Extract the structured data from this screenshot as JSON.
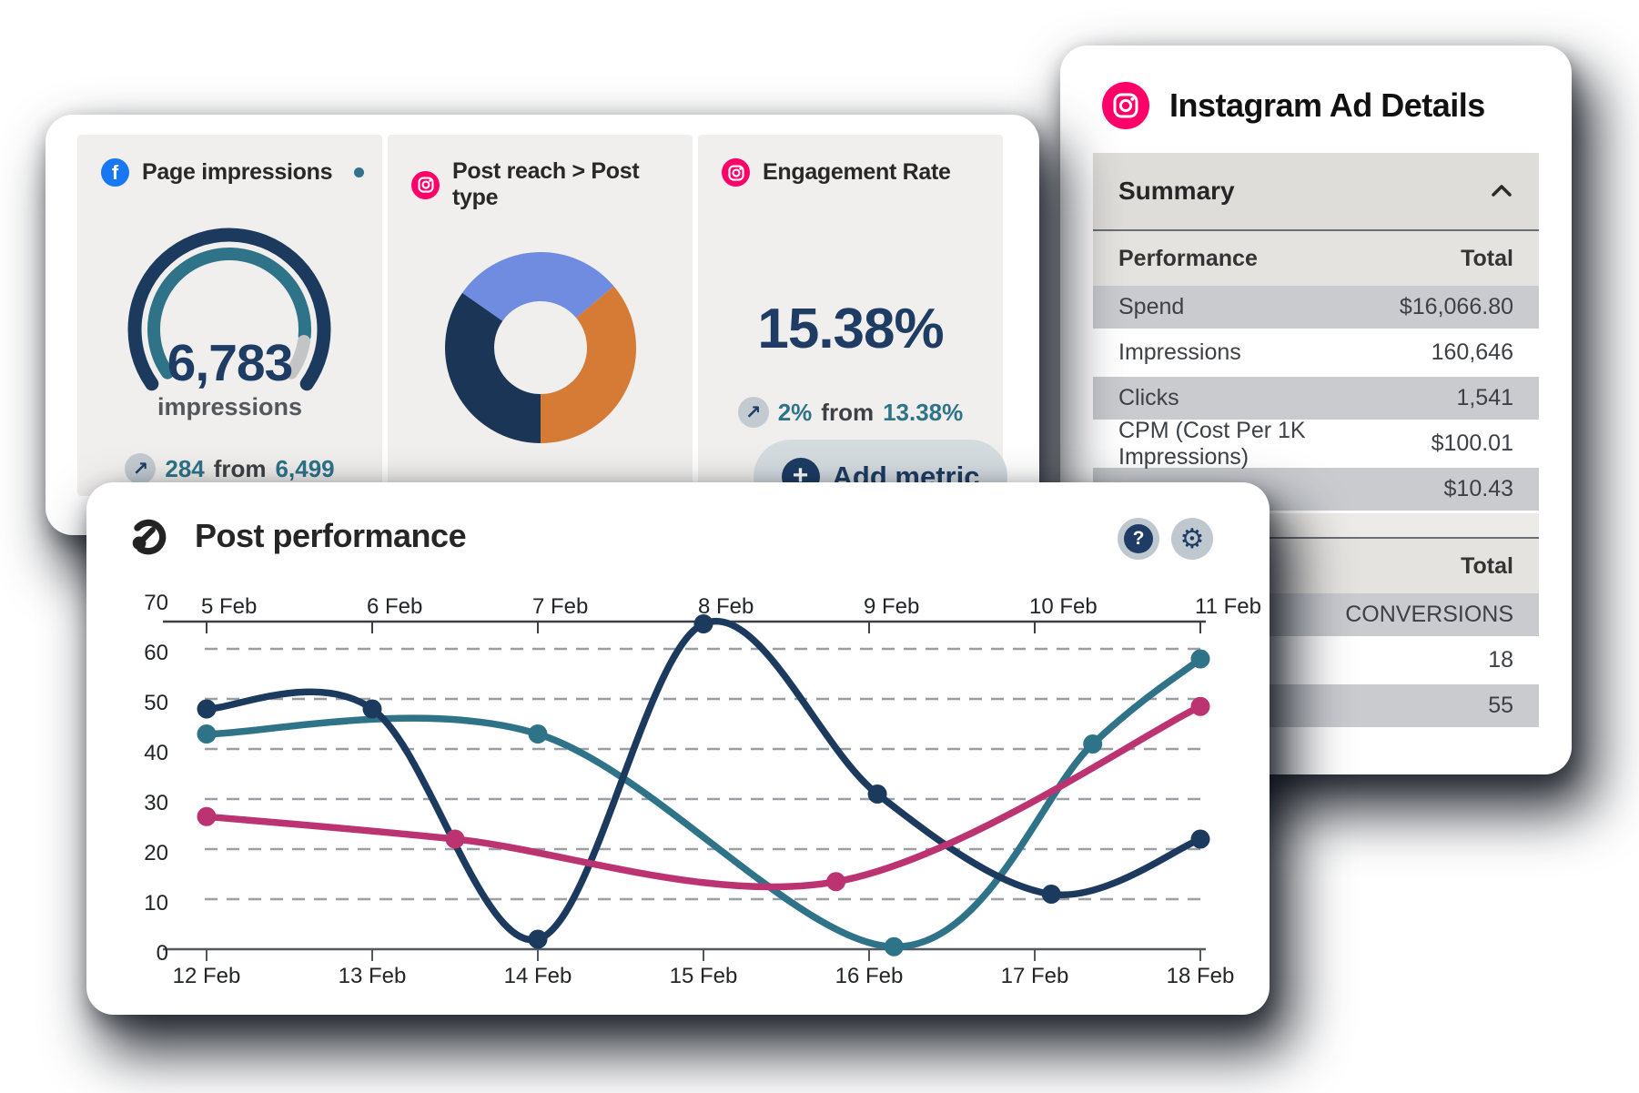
{
  "icons": {
    "facebook": "f",
    "arrow_up_right": "↗",
    "plus": "+",
    "help": "?",
    "gear": "⚙"
  },
  "colors": {
    "navy": "#1e3c64",
    "line_navy": "#1b3a5e",
    "teal": "#2f7389",
    "magenta": "#bc3372",
    "light_blue": "#6f8ce1",
    "orange": "#d67b35",
    "facebook_blue": "#1877f2",
    "instagram_pink": "#ff0069",
    "tile_bg": "#f0efed",
    "gray_row": "#c9cbcf"
  },
  "cards": {
    "metrics": {
      "add_metric_label": "Add metric",
      "tiles": [
        {
          "title": "Page impressions",
          "icon": "facebook",
          "value": "6,783",
          "unit": "impressions",
          "delta": "284",
          "from_word": "from",
          "baseline": "6,499"
        },
        {
          "title": "Post reach > Post type",
          "icon": "instagram"
        },
        {
          "title": "Engagement Rate",
          "icon": "instagram",
          "value": "15.38%",
          "delta": "2%",
          "from_word": "from",
          "baseline": "13.38%"
        }
      ]
    },
    "instagram_ad_details": {
      "title": "Instagram Ad Details",
      "summary_label": "Summary",
      "sections": [
        {
          "header_left": "Performance",
          "header_right": "Total",
          "rows": [
            [
              "Spend",
              "$16,066.80"
            ],
            [
              "Impressions",
              "160,646"
            ],
            [
              "Clicks",
              "1,541"
            ],
            [
              "CPM (Cost Per 1K Impressions)",
              "$100.01"
            ],
            [
              "",
              "$10.43"
            ]
          ]
        },
        {
          "header_left": "",
          "header_right": "Total",
          "rows": [
            [
              "",
              "CONVERSIONS"
            ],
            [
              "",
              "18"
            ],
            [
              "",
              "55"
            ]
          ]
        }
      ]
    },
    "post_performance": {
      "title": "Post performance"
    }
  },
  "chart_data": [
    {
      "type": "gauge",
      "title": "Page impressions",
      "value": 6783,
      "unit": "impressions",
      "delta": 284,
      "previous": 6499,
      "arc": {
        "start_deg": -125,
        "end_deg": 125,
        "progress": 0.88
      },
      "colors": {
        "outer": "#1b3a5e",
        "progress": "#2f7389",
        "remainder": "#c2c4c6"
      }
    },
    {
      "type": "pie",
      "title": "Post reach > Post type",
      "donut": true,
      "start_deg": -55,
      "slices": [
        {
          "name": "slice-1",
          "sweep_deg": 105,
          "percent": 29,
          "color": "#6f8ce1"
        },
        {
          "name": "slice-2",
          "sweep_deg": 130,
          "percent": 36,
          "color": "#d67b35"
        },
        {
          "name": "slice-3",
          "sweep_deg": 125,
          "percent": 35,
          "color": "#1b3557"
        }
      ]
    },
    {
      "type": "line",
      "title": "Post performance",
      "ylim": [
        0,
        70
      ],
      "yticks": [
        0,
        10,
        20,
        30,
        40,
        50,
        60,
        70
      ],
      "grid": "dashed",
      "legend": false,
      "x_range": [
        5,
        11
      ],
      "x_top_labels": [
        "5 Feb",
        "6 Feb",
        "7 Feb",
        "8 Feb",
        "9 Feb",
        "10 Feb",
        "11 Feb"
      ],
      "x_bottom_labels": [
        "12 Feb",
        "13 Feb",
        "14 Feb",
        "15 Feb",
        "16 Feb",
        "17 Feb",
        "18 Feb"
      ],
      "series": [
        {
          "name": "series-teal",
          "color": "#2f7389",
          "points": [
            [
              5,
              43
            ],
            [
              7,
              43
            ],
            [
              9.15,
              0.5
            ],
            [
              10.35,
              41
            ],
            [
              11,
              58
            ]
          ]
        },
        {
          "name": "series-navy",
          "color": "#1b3a5e",
          "points": [
            [
              5,
              48
            ],
            [
              6,
              48
            ],
            [
              7,
              2
            ],
            [
              8,
              65
            ],
            [
              9.05,
              31
            ],
            [
              10.1,
              11
            ],
            [
              11,
              22
            ]
          ]
        },
        {
          "name": "series-magenta",
          "color": "#bc3372",
          "points": [
            [
              5,
              26.5
            ],
            [
              6.5,
              22
            ],
            [
              8.8,
              13.5
            ],
            [
              11,
              48.5
            ]
          ]
        }
      ]
    }
  ]
}
